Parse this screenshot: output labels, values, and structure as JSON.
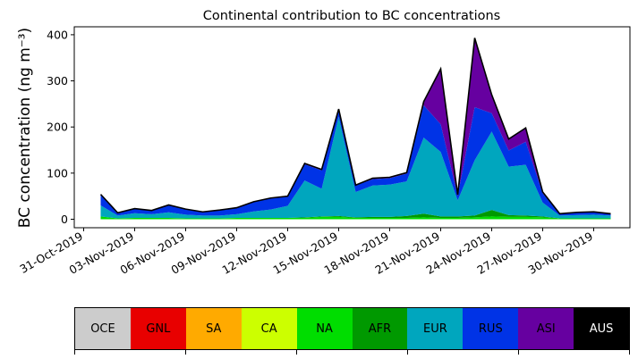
{
  "chart_data": {
    "type": "area",
    "stacked": true,
    "title": "Continental contribution to BC concentrations",
    "ylabel": "BC concentration (ng m⁻³)",
    "xlabel": "",
    "ylim": [
      0,
      420
    ],
    "y_ticks": [
      0,
      100,
      200,
      300,
      400
    ],
    "x_tick_labels": [
      "31-Oct-2019",
      "03-Nov-2019",
      "06-Nov-2019",
      "09-Nov-2019",
      "12-Nov-2019",
      "15-Nov-2019",
      "18-Nov-2019",
      "21-Nov-2019",
      "24-Nov-2019",
      "27-Nov-2019",
      "30-Nov-2019"
    ],
    "grid": false,
    "x": [
      "2019-11-01",
      "2019-11-02",
      "2019-11-03",
      "2019-11-04",
      "2019-11-05",
      "2019-11-06",
      "2019-11-07",
      "2019-11-08",
      "2019-11-09",
      "2019-11-10",
      "2019-11-11",
      "2019-11-12",
      "2019-11-13",
      "2019-11-14",
      "2019-11-15",
      "2019-11-16",
      "2019-11-17",
      "2019-11-18",
      "2019-11-19",
      "2019-11-20",
      "2019-11-21",
      "2019-11-22",
      "2019-11-23",
      "2019-11-24",
      "2019-11-25",
      "2019-11-26",
      "2019-11-27",
      "2019-11-28",
      "2019-11-29",
      "2019-11-30",
      "2019-12-01"
    ],
    "series": [
      {
        "name": "OCE",
        "color": "#cccccc",
        "values": [
          0,
          0,
          0,
          0,
          0,
          0,
          0,
          0,
          0,
          0,
          0,
          0,
          0,
          0,
          0,
          0,
          0,
          0,
          0,
          0,
          0,
          0,
          0,
          0,
          0,
          0,
          0,
          0,
          0,
          0,
          0
        ]
      },
      {
        "name": "GNL",
        "color": "#e80000",
        "values": [
          0,
          0,
          0,
          0,
          0,
          0,
          0,
          0,
          0,
          0,
          0,
          0,
          0,
          0,
          0,
          0,
          0,
          0,
          0,
          0,
          0,
          0,
          0,
          0,
          0,
          0,
          0,
          0,
          0,
          0,
          0
        ]
      },
      {
        "name": "SA",
        "color": "#ffaa00",
        "values": [
          0,
          0,
          0,
          0,
          0,
          0,
          0,
          0,
          0,
          0,
          0,
          0,
          0,
          0,
          0,
          0,
          0,
          0,
          0,
          0,
          0,
          0,
          0,
          0,
          0,
          0,
          0,
          0,
          0,
          0,
          0
        ]
      },
      {
        "name": "CA",
        "color": "#ccff00",
        "values": [
          0,
          0,
          0,
          0,
          0,
          0,
          0,
          0,
          0,
          0,
          0,
          0,
          0,
          0,
          0,
          0,
          0,
          0,
          0,
          0,
          0,
          0,
          0,
          0,
          0,
          0,
          0,
          0,
          0,
          0,
          0
        ]
      },
      {
        "name": "NA",
        "color": "#00dd00",
        "values": [
          6,
          2,
          3,
          3,
          3,
          2,
          2,
          2,
          3,
          3,
          3,
          3,
          3,
          5,
          5,
          3,
          3,
          3,
          3,
          4,
          3,
          3,
          4,
          6,
          5,
          5,
          4,
          2,
          2,
          2,
          2
        ]
      },
      {
        "name": "AFR",
        "color": "#009900",
        "values": [
          0,
          0,
          0,
          0,
          0,
          0,
          0,
          0,
          0,
          0,
          0,
          0,
          1,
          1,
          2,
          1,
          2,
          2,
          4,
          8,
          3,
          3,
          4,
          14,
          4,
          3,
          2,
          0,
          0,
          0,
          0
        ]
      },
      {
        "name": "EUR",
        "color": "#00a6be",
        "values": [
          24,
          6,
          10,
          8,
          12,
          8,
          6,
          6,
          8,
          14,
          18,
          26,
          80,
          60,
          215,
          55,
          68,
          70,
          75,
          165,
          140,
          35,
          120,
          170,
          105,
          110,
          30,
          6,
          7,
          8,
          6
        ]
      },
      {
        "name": "RUS",
        "color": "#0033e6",
        "values": [
          24,
          6,
          10,
          8,
          16,
          12,
          8,
          12,
          14,
          20,
          24,
          20,
          35,
          40,
          15,
          14,
          14,
          14,
          17,
          70,
          60,
          10,
          115,
          40,
          35,
          50,
          20,
          4,
          6,
          6,
          4
        ]
      },
      {
        "name": "ASI",
        "color": "#6600a0",
        "values": [
          0,
          0,
          0,
          0,
          0,
          0,
          0,
          0,
          0,
          1,
          1,
          1,
          2,
          2,
          2,
          1,
          2,
          2,
          2,
          8,
          120,
          2,
          150,
          40,
          25,
          30,
          3,
          0,
          0,
          0,
          0
        ]
      },
      {
        "name": "AUS",
        "color": "#000000",
        "values": [
          0,
          0,
          0,
          0,
          0,
          0,
          0,
          0,
          0,
          0,
          0,
          0,
          0,
          0,
          0,
          0,
          0,
          0,
          0,
          0,
          0,
          0,
          0,
          0,
          0,
          0,
          0,
          0,
          0,
          0,
          0
        ]
      }
    ]
  },
  "legend": [
    {
      "label": "OCE",
      "color": "#cccccc",
      "text_color": "#000000"
    },
    {
      "label": "GNL",
      "color": "#e80000",
      "text_color": "#000000"
    },
    {
      "label": "SA",
      "color": "#ffaa00",
      "text_color": "#000000"
    },
    {
      "label": "CA",
      "color": "#ccff00",
      "text_color": "#000000"
    },
    {
      "label": "NA",
      "color": "#00dd00",
      "text_color": "#000000"
    },
    {
      "label": "AFR",
      "color": "#009900",
      "text_color": "#000000"
    },
    {
      "label": "EUR",
      "color": "#00a6be",
      "text_color": "#000000"
    },
    {
      "label": "RUS",
      "color": "#0033e6",
      "text_color": "#000000"
    },
    {
      "label": "ASI",
      "color": "#6600a0",
      "text_color": "#000000"
    },
    {
      "label": "AUS",
      "color": "#000000",
      "text_color": "#ffffff"
    }
  ]
}
